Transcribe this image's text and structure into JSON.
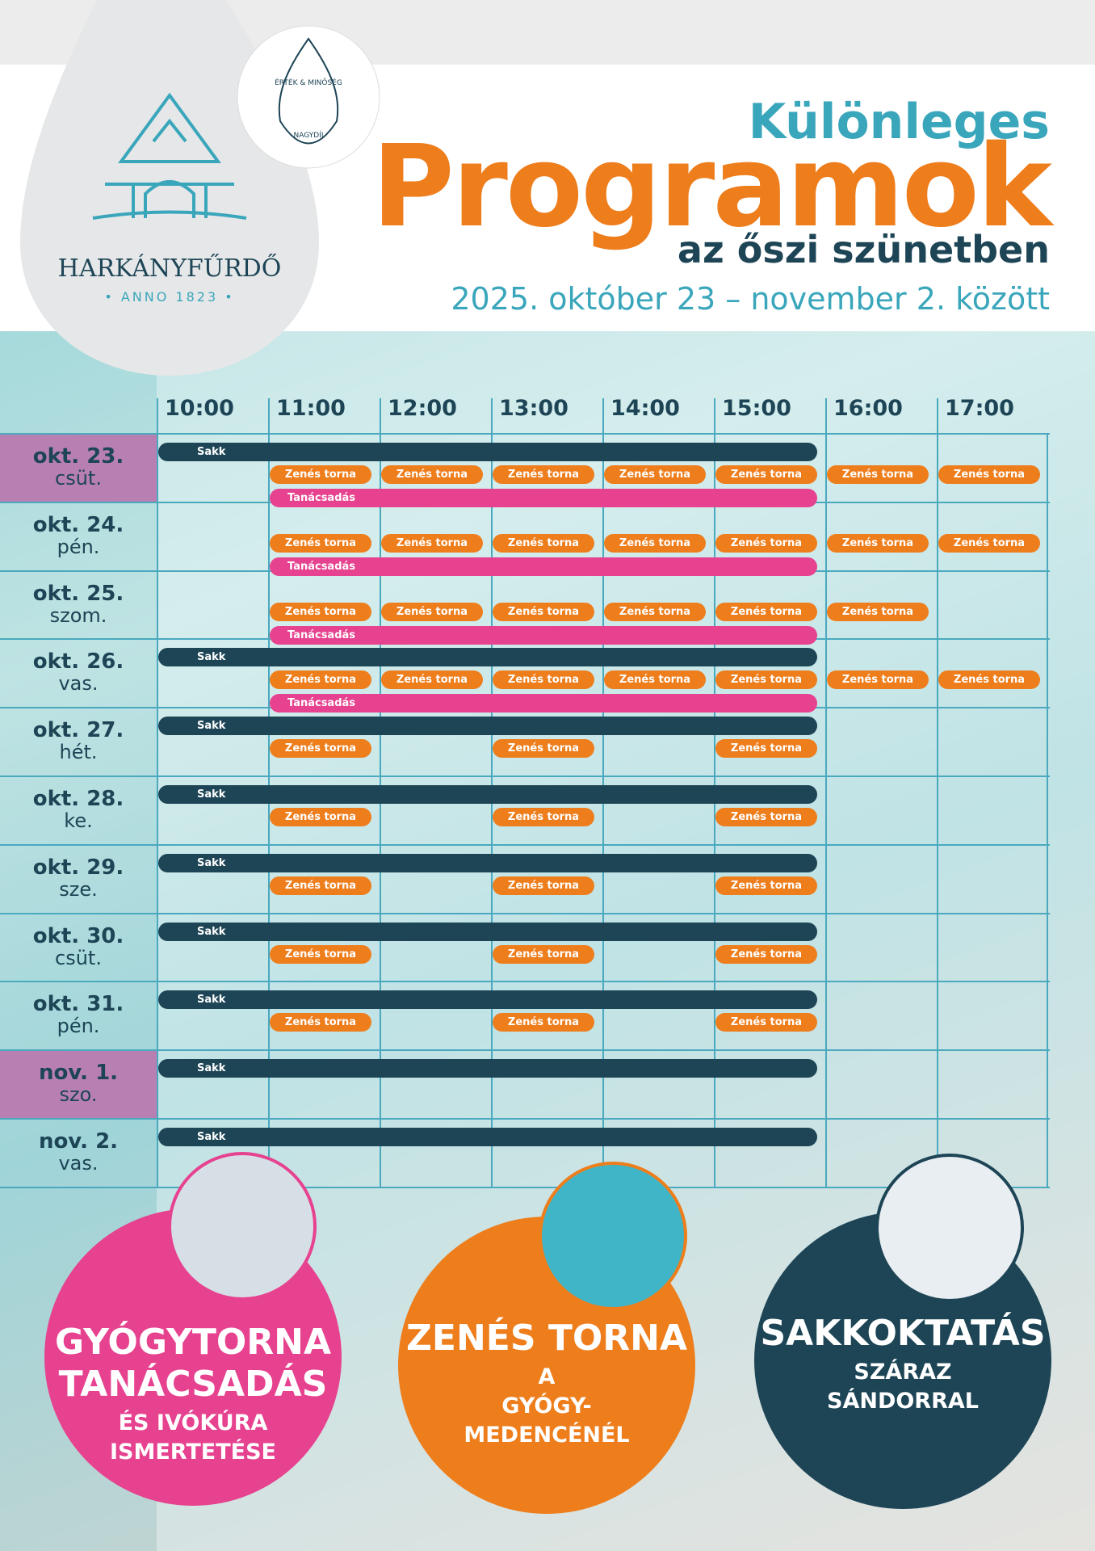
{
  "header": {
    "kicker": "Különleges",
    "title": "Programok",
    "subtitle": "az őszi szünetben",
    "dates": "2025. október 23 – november 2. között"
  },
  "logo": {
    "name": "HARKÁNYFŰRDŐ",
    "anno": "• ANNO 1823 •",
    "badge_top": "ÉRTÉK & MINŐSÉG",
    "badge_bottom": "NAGYDÍJ"
  },
  "schedule": {
    "times": [
      "10:00",
      "11:00",
      "12:00",
      "13:00",
      "14:00",
      "15:00",
      "16:00",
      "17:00"
    ],
    "lanes": [
      {
        "color": "#1d4556"
      },
      {
        "color": "#ee7d1c"
      },
      {
        "color": "#e6428f"
      }
    ],
    "days": [
      {
        "date": "okt. 23.",
        "weekday": "csüt.",
        "holiday": true,
        "lanes": [
          [
            {
              "label": "Sakk",
              "start": "10:00",
              "end": "16:00"
            }
          ],
          [
            {
              "label": "Zenés torna",
              "start": "11:00"
            },
            {
              "label": "Zenés torna",
              "start": "12:00"
            },
            {
              "label": "Zenés torna",
              "start": "13:00"
            },
            {
              "label": "Zenés torna",
              "start": "14:00"
            },
            {
              "label": "Zenés torna",
              "start": "15:00"
            },
            {
              "label": "Zenés torna",
              "start": "16:00"
            },
            {
              "label": "Zenés torna",
              "start": "17:00"
            }
          ],
          [
            {
              "label": "Tanácsadás",
              "start": "11:00",
              "end": "16:00"
            }
          ]
        ]
      },
      {
        "date": "okt. 24.",
        "weekday": "pén.",
        "holiday": false,
        "lanes": [
          [],
          [
            {
              "label": "Zenés torna",
              "start": "11:00"
            },
            {
              "label": "Zenés torna",
              "start": "12:00"
            },
            {
              "label": "Zenés torna",
              "start": "13:00"
            },
            {
              "label": "Zenés torna",
              "start": "14:00"
            },
            {
              "label": "Zenés torna",
              "start": "15:00"
            },
            {
              "label": "Zenés torna",
              "start": "16:00"
            },
            {
              "label": "Zenés torna",
              "start": "17:00"
            }
          ],
          [
            {
              "label": "Tanácsadás",
              "start": "11:00",
              "end": "16:00"
            }
          ]
        ]
      },
      {
        "date": "okt. 25.",
        "weekday": "szom.",
        "holiday": false,
        "lanes": [
          [],
          [
            {
              "label": "Zenés torna",
              "start": "11:00"
            },
            {
              "label": "Zenés torna",
              "start": "12:00"
            },
            {
              "label": "Zenés torna",
              "start": "13:00"
            },
            {
              "label": "Zenés torna",
              "start": "14:00"
            },
            {
              "label": "Zenés torna",
              "start": "15:00"
            },
            {
              "label": "Zenés torna",
              "start": "16:00"
            }
          ],
          [
            {
              "label": "Tanácsadás",
              "start": "11:00",
              "end": "16:00"
            }
          ]
        ]
      },
      {
        "date": "okt. 26.",
        "weekday": "vas.",
        "holiday": false,
        "lanes": [
          [
            {
              "label": "Sakk",
              "start": "10:00",
              "end": "16:00"
            }
          ],
          [
            {
              "label": "Zenés torna",
              "start": "11:00"
            },
            {
              "label": "Zenés torna",
              "start": "12:00"
            },
            {
              "label": "Zenés torna",
              "start": "13:00"
            },
            {
              "label": "Zenés torna",
              "start": "14:00"
            },
            {
              "label": "Zenés torna",
              "start": "15:00"
            },
            {
              "label": "Zenés torna",
              "start": "16:00"
            },
            {
              "label": "Zenés torna",
              "start": "17:00"
            }
          ],
          [
            {
              "label": "Tanácsadás",
              "start": "11:00",
              "end": "16:00"
            }
          ]
        ]
      },
      {
        "date": "okt. 27.",
        "weekday": "hét.",
        "holiday": false,
        "lanes": [
          [
            {
              "label": "Sakk",
              "start": "10:00",
              "end": "16:00"
            }
          ],
          [
            {
              "label": "Zenés torna",
              "start": "11:00"
            },
            {
              "label": "Zenés torna",
              "start": "13:00"
            },
            {
              "label": "Zenés torna",
              "start": "15:00"
            }
          ],
          []
        ]
      },
      {
        "date": "okt. 28.",
        "weekday": "ke.",
        "holiday": false,
        "lanes": [
          [
            {
              "label": "Sakk",
              "start": "10:00",
              "end": "16:00"
            }
          ],
          [
            {
              "label": "Zenés torna",
              "start": "11:00"
            },
            {
              "label": "Zenés torna",
              "start": "13:00"
            },
            {
              "label": "Zenés torna",
              "start": "15:00"
            }
          ],
          []
        ]
      },
      {
        "date": "okt. 29.",
        "weekday": "sze.",
        "holiday": false,
        "lanes": [
          [
            {
              "label": "Sakk",
              "start": "10:00",
              "end": "16:00"
            }
          ],
          [
            {
              "label": "Zenés torna",
              "start": "11:00"
            },
            {
              "label": "Zenés torna",
              "start": "13:00"
            },
            {
              "label": "Zenés torna",
              "start": "15:00"
            }
          ],
          []
        ]
      },
      {
        "date": "okt. 30.",
        "weekday": "csüt.",
        "holiday": false,
        "lanes": [
          [
            {
              "label": "Sakk",
              "start": "10:00",
              "end": "16:00"
            }
          ],
          [
            {
              "label": "Zenés torna",
              "start": "11:00"
            },
            {
              "label": "Zenés torna",
              "start": "13:00"
            },
            {
              "label": "Zenés torna",
              "start": "15:00"
            }
          ],
          []
        ]
      },
      {
        "date": "okt. 31.",
        "weekday": "pén.",
        "holiday": false,
        "lanes": [
          [
            {
              "label": "Sakk",
              "start": "10:00",
              "end": "16:00"
            }
          ],
          [
            {
              "label": "Zenés torna",
              "start": "11:00"
            },
            {
              "label": "Zenés torna",
              "start": "13:00"
            },
            {
              "label": "Zenés torna",
              "start": "15:00"
            }
          ],
          []
        ]
      },
      {
        "date": "nov. 1.",
        "weekday": "szo.",
        "holiday": true,
        "lanes": [
          [
            {
              "label": "Sakk",
              "start": "10:00",
              "end": "16:00"
            }
          ],
          [],
          []
        ]
      },
      {
        "date": "nov. 2.",
        "weekday": "vas.",
        "holiday": false,
        "lanes": [
          [
            {
              "label": "Sakk",
              "start": "10:00",
              "end": "16:00"
            }
          ],
          [],
          []
        ]
      }
    ]
  },
  "cards": [
    {
      "color": "#e6428f",
      "title": [
        "GYÓGYTORNA",
        "TANÁCSADÁS"
      ],
      "text": [
        "ÉS IVÓKÚRA",
        "ISMERTETÉSE"
      ]
    },
    {
      "color": "#ee7d1c",
      "title": [
        "ZENÉS TORNA"
      ],
      "text": [
        "A",
        "GYÓGY-",
        "MEDENCÉNÉL"
      ]
    },
    {
      "color": "#1d4556",
      "title": [
        "SAKKOKTATÁS"
      ],
      "text": [
        "SZÁRAZ",
        "SÁNDORRAL"
      ]
    }
  ]
}
